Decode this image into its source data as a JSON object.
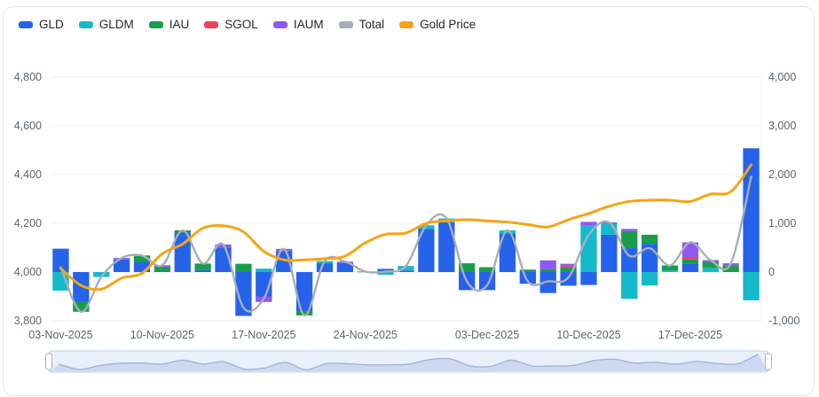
{
  "legend": [
    {
      "label": "GLD",
      "color": "#2563eb"
    },
    {
      "label": "GLDM",
      "color": "#14b9cc"
    },
    {
      "label": "IAU",
      "color": "#189d49"
    },
    {
      "label": "SGOL",
      "color": "#ef4059"
    },
    {
      "label": "IAUM",
      "color": "#8e59f2"
    },
    {
      "label": "Total",
      "color": "#a8aeb8"
    },
    {
      "label": "Gold Price",
      "color": "#f5a414"
    }
  ],
  "chart_data": {
    "type": "bar",
    "subtype": "stacked bars + two smooth lines, dual y-axis",
    "categories": [
      "03-Nov-2025",
      "04-Nov-2025",
      "05-Nov-2025",
      "06-Nov-2025",
      "07-Nov-2025",
      "10-Nov-2025",
      "11-Nov-2025",
      "12-Nov-2025",
      "13-Nov-2025",
      "14-Nov-2025",
      "17-Nov-2025",
      "18-Nov-2025",
      "19-Nov-2025",
      "20-Nov-2025",
      "21-Nov-2025",
      "24-Nov-2025",
      "25-Nov-2025",
      "26-Nov-2025",
      "28-Nov-2025",
      "01-Dec-2025",
      "02-Dec-2025",
      "03-Dec-2025",
      "04-Dec-2025",
      "05-Dec-2025",
      "08-Dec-2025",
      "09-Dec-2025",
      "10-Dec-2025",
      "11-Dec-2025",
      "12-Dec-2025",
      "15-Dec-2025",
      "16-Dec-2025",
      "17-Dec-2025",
      "18-Dec-2025",
      "19-Dec-2025",
      "22-Dec-2025"
    ],
    "series": [
      {
        "name": "GLD",
        "type": "bar",
        "stack": true,
        "axis": "right",
        "color": "#2563eb",
        "values": [
          480,
          -600,
          0,
          260,
          200,
          0,
          810,
          40,
          505,
          -900,
          -500,
          430,
          -810,
          180,
          185,
          10,
          65,
          30,
          885,
          1020,
          -370,
          -370,
          795,
          -240,
          -430,
          -280,
          -265,
          765,
          490,
          580,
          0,
          170,
          0,
          0,
          2540
        ]
      },
      {
        "name": "GLDM",
        "type": "bar",
        "stack": true,
        "axis": "right",
        "color": "#14b9cc",
        "values": [
          -380,
          0,
          -100,
          0,
          0,
          0,
          0,
          0,
          0,
          0,
          70,
          0,
          0,
          45,
          0,
          0,
          -55,
          95,
          75,
          80,
          0,
          0,
          60,
          0,
          0,
          0,
          950,
          225,
          -550,
          -275,
          35,
          0,
          90,
          0,
          -580
        ]
      },
      {
        "name": "IAU",
        "type": "bar",
        "stack": true,
        "axis": "right",
        "color": "#189d49",
        "values": [
          0,
          -215,
          0,
          0,
          140,
          100,
          45,
          135,
          0,
          170,
          0,
          0,
          -80,
          0,
          0,
          0,
          0,
          0,
          0,
          0,
          180,
          100,
          0,
          50,
          60,
          90,
          0,
          0,
          350,
          185,
          100,
          90,
          110,
          140,
          0
        ]
      },
      {
        "name": "SGOL",
        "type": "bar",
        "stack": true,
        "axis": "right",
        "color": "#ef4059",
        "values": [
          0,
          0,
          0,
          0,
          0,
          0,
          0,
          0,
          0,
          0,
          0,
          0,
          0,
          0,
          0,
          0,
          0,
          0,
          0,
          0,
          0,
          0,
          0,
          0,
          0,
          30,
          0,
          0,
          0,
          0,
          0,
          40,
          0,
          0,
          0
        ]
      },
      {
        "name": "IAUM",
        "type": "bar",
        "stack": true,
        "axis": "right",
        "color": "#8e59f2",
        "values": [
          0,
          0,
          0,
          30,
          0,
          40,
          0,
          0,
          60,
          0,
          -115,
          45,
          0,
          0,
          30,
          0,
          0,
          0,
          0,
          0,
          0,
          0,
          0,
          0,
          180,
          50,
          80,
          30,
          45,
          0,
          0,
          310,
          45,
          40,
          0
        ]
      },
      {
        "name": "Total",
        "type": "line",
        "axis": "right",
        "color": "#a8aeb8",
        "values": [
          100,
          -815,
          -100,
          290,
          340,
          140,
          855,
          175,
          565,
          -730,
          -545,
          475,
          -890,
          225,
          215,
          10,
          10,
          125,
          960,
          1100,
          -190,
          -270,
          855,
          -190,
          -190,
          -110,
          765,
          1020,
          335,
          490,
          135,
          610,
          245,
          180,
          1960
        ]
      },
      {
        "name": "Gold Price",
        "type": "line",
        "axis": "left",
        "color": "#f5a414",
        "values": [
          4015,
          3945,
          3930,
          3975,
          3995,
          4075,
          4115,
          4180,
          4190,
          4165,
          4085,
          4050,
          4050,
          4055,
          4065,
          4120,
          4155,
          4160,
          4200,
          4210,
          4215,
          4210,
          4205,
          4195,
          4185,
          4215,
          4240,
          4270,
          4290,
          4295,
          4295,
          4290,
          4320,
          4330,
          4440
        ]
      }
    ],
    "x_axis": {
      "tick_indices": [
        0,
        5,
        10,
        15,
        21,
        26,
        31
      ],
      "tick_labels": [
        "03-Nov-2025",
        "10-Nov-2025",
        "17-Nov-2025",
        "24-Nov-2025",
        "03-Dec-2025",
        "10-Dec-2025",
        "17-Dec-2025"
      ]
    },
    "y_axis_left": {
      "min": 3800,
      "max": 4800,
      "step": 200,
      "tick_labels": [
        "4,800",
        "4,600",
        "4,400",
        "4,200",
        "4,000",
        "3,800"
      ]
    },
    "y_axis_right": {
      "min": -1000,
      "max": 4000,
      "step": 1000,
      "tick_labels": [
        "4,000",
        "3,000",
        "2,000",
        "1,000",
        "0",
        "-1,000"
      ]
    },
    "grid": true,
    "legend_position": "top-left"
  },
  "colors": {
    "card_border": "#e2e5ea",
    "grid_line": "#ebedf2",
    "axis_text": "#5c6570",
    "datazoom_bg": "#e9f0fb",
    "datazoom_border": "#bfd0ec",
    "datazoom_fill": "#cdd9f0",
    "datazoom_line": "#a3b5d8",
    "datazoom_handle_border": "#aab1bd"
  },
  "datazoom": {
    "preview_series": "Total"
  }
}
